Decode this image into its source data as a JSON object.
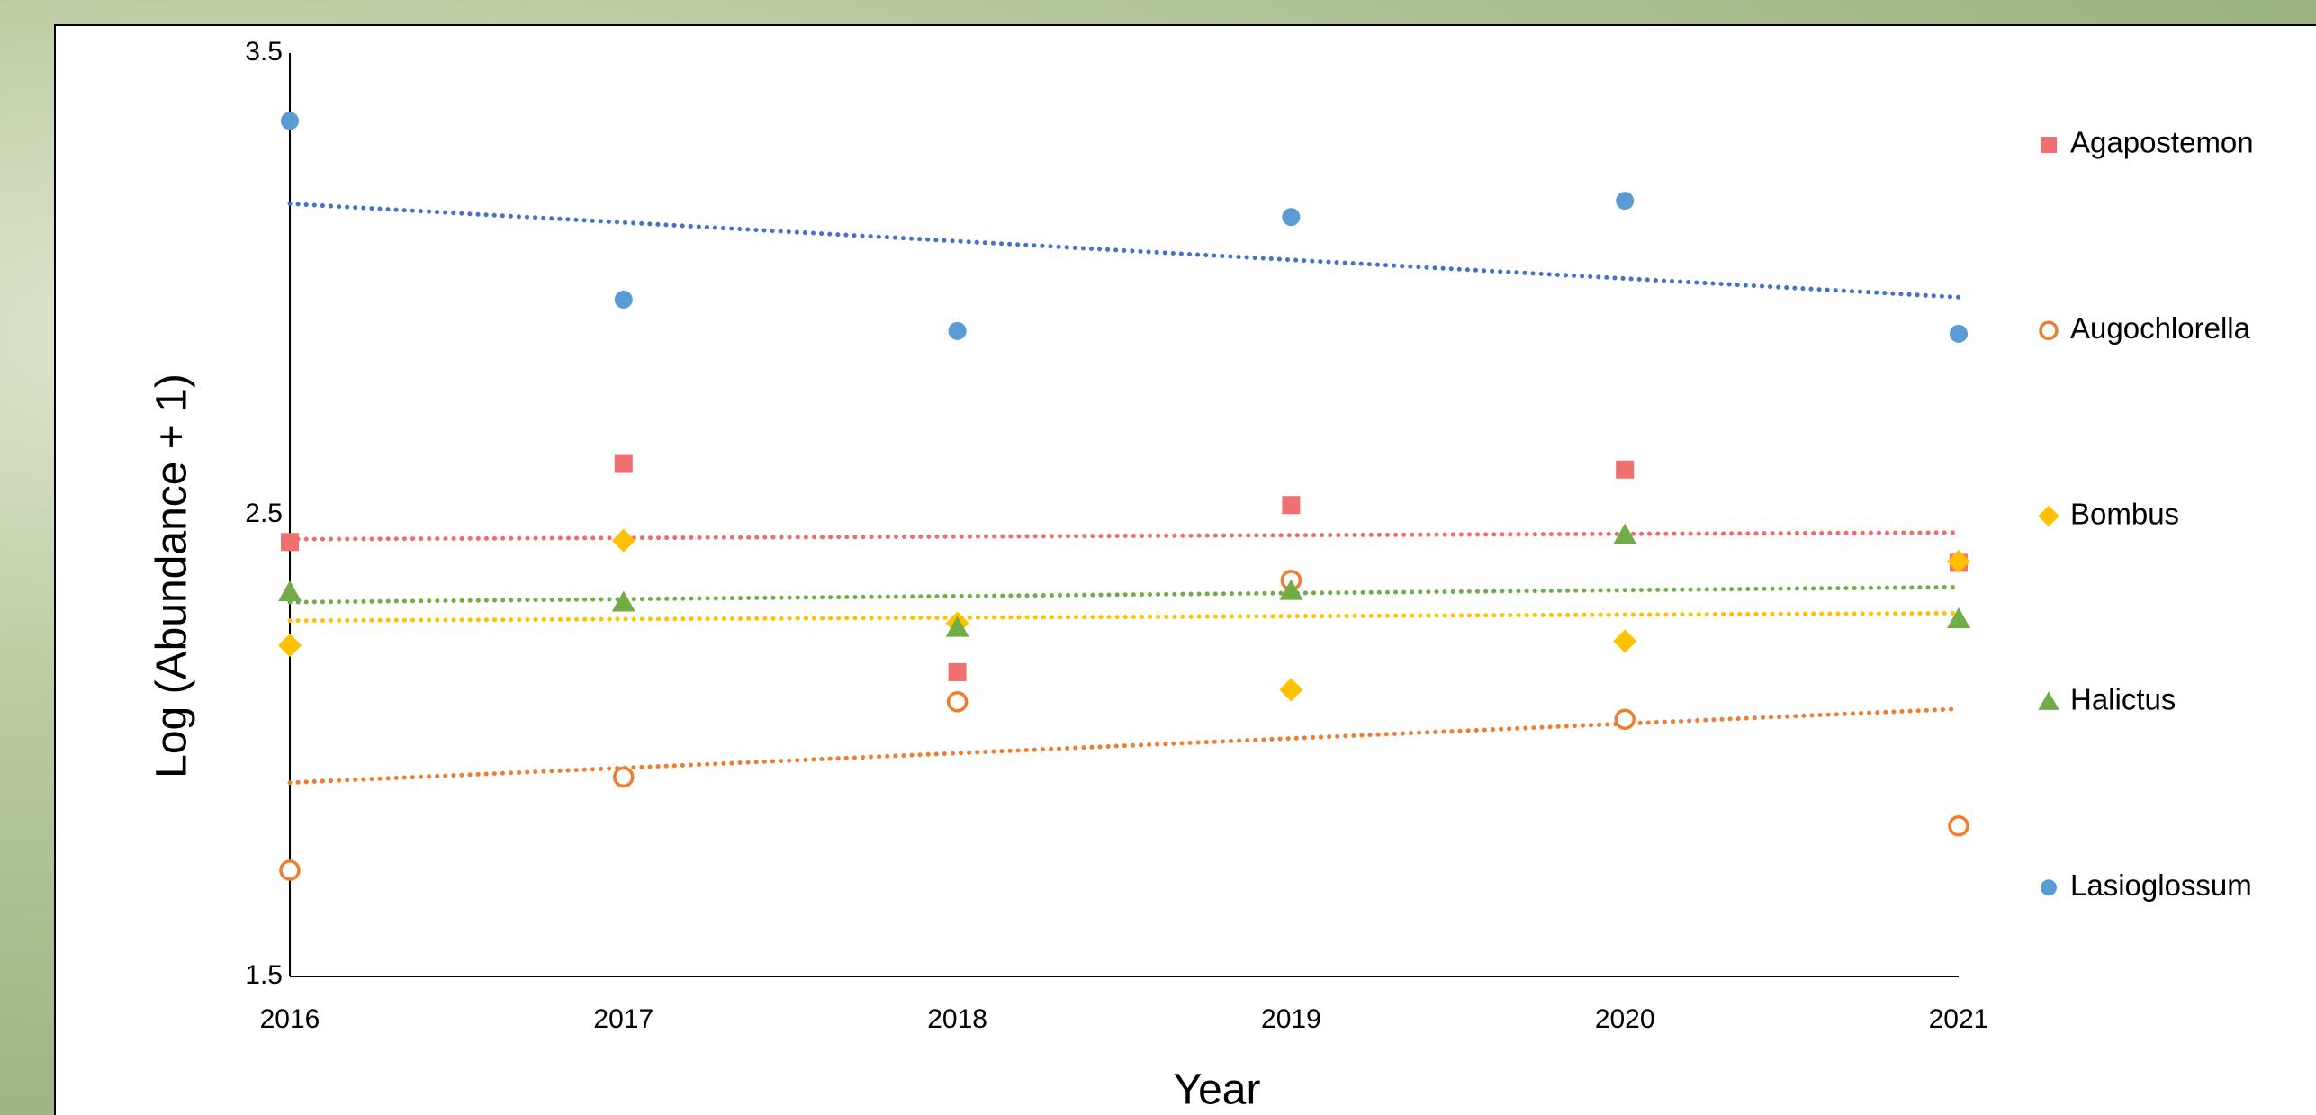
{
  "chart_data": {
    "type": "scatter",
    "x_label": "Year",
    "y_label": "Log (Abundance + 1)",
    "x": [
      2016,
      2017,
      2018,
      2019,
      2020,
      2021
    ],
    "xlim": [
      2016,
      2021
    ],
    "xticks": [
      2016,
      2017,
      2018,
      2019,
      2020,
      2021
    ],
    "ylim": [
      1.5,
      3.5
    ],
    "yticks": [
      1.5,
      2.5,
      3.5
    ],
    "grid": false,
    "trendline": "linear",
    "legend": "right",
    "series": [
      {
        "name": "Agapostemon",
        "color": "#f07070",
        "trend_color": "#f26b6b",
        "marker": "square",
        "values": [
          2.441,
          2.61,
          2.159,
          2.521,
          2.598,
          2.396
        ]
      },
      {
        "name": "Augochlorella",
        "color": "#ed7d31",
        "trend_color": "#ed7d31",
        "marker": "open-circle",
        "values": [
          1.73,
          1.932,
          2.095,
          2.358,
          2.057,
          1.826
        ]
      },
      {
        "name": "Bombus",
        "color": "#ffc000",
        "trend_color": "#ffc000",
        "marker": "diamond",
        "values": [
          2.217,
          2.444,
          2.265,
          2.121,
          2.226,
          2.399
        ]
      },
      {
        "name": "Halictus",
        "color": "#70ad47",
        "trend_color": "#70ad47",
        "marker": "triangle",
        "values": [
          2.332,
          2.31,
          2.255,
          2.335,
          2.456,
          2.274
        ]
      },
      {
        "name": "Lasioglossum",
        "color": "#5b9bd5",
        "trend_color": "#4472c4",
        "marker": "circle",
        "values": [
          3.353,
          2.966,
          2.898,
          3.145,
          3.18,
          2.892
        ]
      }
    ]
  }
}
